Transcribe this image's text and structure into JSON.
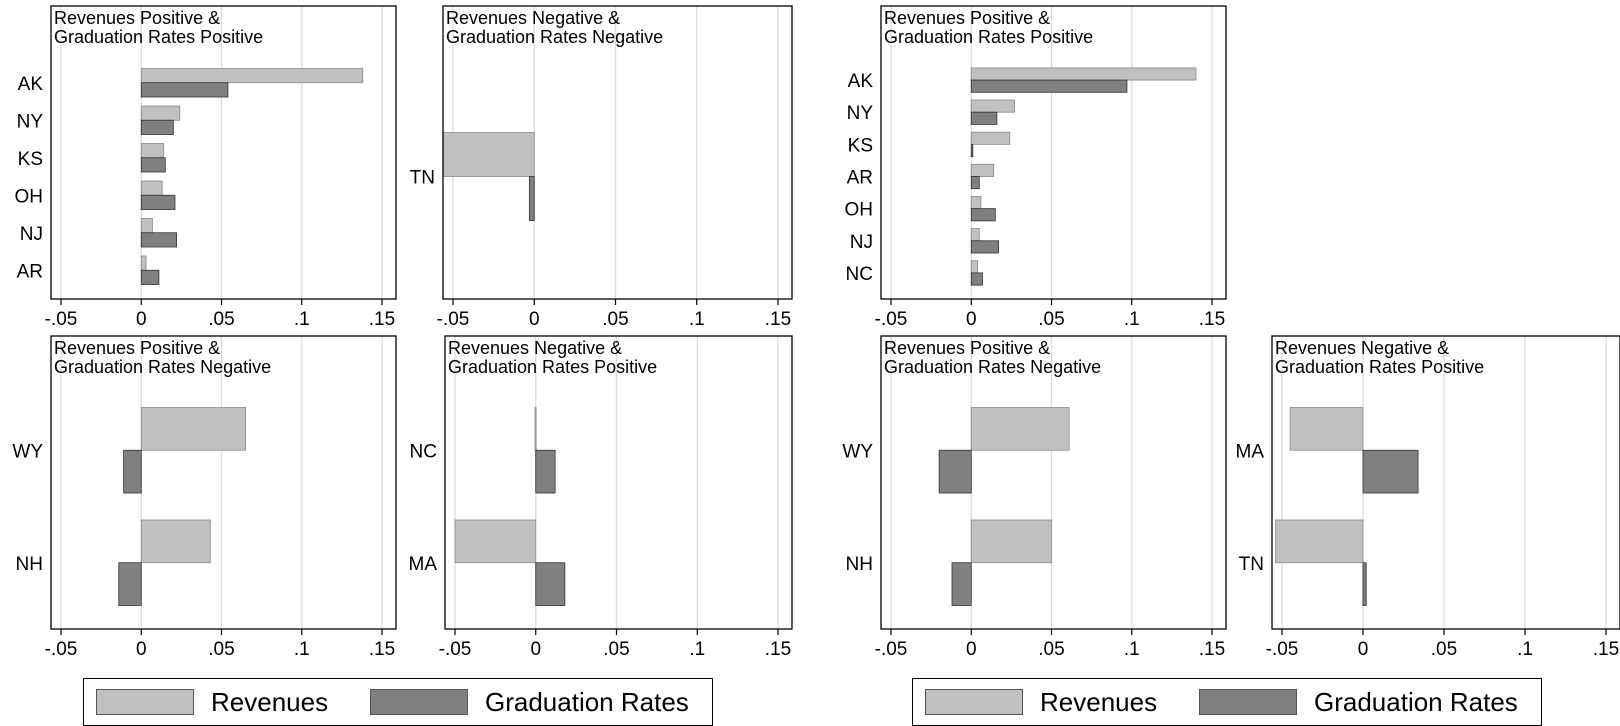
{
  "colors": {
    "revenues": "#c0c0c0",
    "graduation_rates": "#808080",
    "gridline": "#dcdcdc"
  },
  "legends": [
    {
      "items": [
        {
          "label": "Revenues",
          "series": "revenues"
        },
        {
          "label": "Graduation Rates",
          "series": "graduation_rates"
        }
      ]
    },
    {
      "items": [
        {
          "label": "Revenues",
          "series": "revenues"
        },
        {
          "label": "Graduation Rates",
          "series": "graduation_rates"
        }
      ]
    }
  ],
  "chart_data": [
    {
      "type": "bar",
      "orientation": "horizontal",
      "panel": "left-top-left",
      "title": [
        "Revenues Positive &",
        "Graduation Rates Positive"
      ],
      "categories": [
        "AK",
        "NY",
        "KS",
        "OH",
        "NJ",
        "AR"
      ],
      "series": [
        {
          "name": "Revenues",
          "values": [
            0.138,
            0.024,
            0.014,
            0.013,
            0.007,
            0.003
          ]
        },
        {
          "name": "Graduation Rates",
          "values": [
            0.054,
            0.02,
            0.015,
            0.021,
            0.022,
            0.011
          ]
        }
      ],
      "xlim": [
        -0.05,
        0.15
      ],
      "xticks": [
        -0.05,
        0,
        0.05,
        0.1,
        0.15
      ],
      "xtick_labels": [
        "-.05",
        "0",
        ".05",
        ".1",
        ".15"
      ],
      "grid": true
    },
    {
      "type": "bar",
      "orientation": "horizontal",
      "panel": "left-top-right",
      "title": [
        "Revenues Negative &",
        "Graduation Rates Negative"
      ],
      "categories": [
        "TN"
      ],
      "series": [
        {
          "name": "Revenues",
          "values": [
            -0.056
          ]
        },
        {
          "name": "Graduation Rates",
          "values": [
            -0.003
          ]
        }
      ],
      "xlim": [
        -0.05,
        0.15
      ],
      "xticks": [
        -0.05,
        0,
        0.05,
        0.1,
        0.15
      ],
      "xtick_labels": [
        "-.05",
        "0",
        ".05",
        ".1",
        ".15"
      ],
      "grid": true
    },
    {
      "type": "bar",
      "orientation": "horizontal",
      "panel": "left-bottom-left",
      "title": [
        "Revenues Positive &",
        "Graduation Rates Negative"
      ],
      "categories": [
        "WY",
        "NH"
      ],
      "series": [
        {
          "name": "Revenues",
          "values": [
            0.065,
            0.043
          ]
        },
        {
          "name": "Graduation Rates",
          "values": [
            -0.011,
            -0.014
          ]
        }
      ],
      "xlim": [
        -0.05,
        0.15
      ],
      "xticks": [
        -0.05,
        0,
        0.05,
        0.1,
        0.15
      ],
      "xtick_labels": [
        "-.05",
        "0",
        ".05",
        ".1",
        ".15"
      ],
      "grid": true
    },
    {
      "type": "bar",
      "orientation": "horizontal",
      "panel": "left-bottom-right",
      "title": [
        "Revenues Negative &",
        "Graduation Rates Positive"
      ],
      "categories": [
        "NC",
        "MA"
      ],
      "series": [
        {
          "name": "Revenues",
          "values": [
            -0.0005,
            -0.05
          ]
        },
        {
          "name": "Graduation Rates",
          "values": [
            0.012,
            0.018
          ]
        }
      ],
      "xlim": [
        -0.05,
        0.15
      ],
      "xticks": [
        -0.05,
        0,
        0.05,
        0.1,
        0.15
      ],
      "xtick_labels": [
        "-.05",
        "0",
        ".05",
        ".1",
        ".15"
      ],
      "grid": true
    },
    {
      "type": "bar",
      "orientation": "horizontal",
      "panel": "right-top-left",
      "title": [
        "Revenues Positive &",
        "Graduation Rates Positive"
      ],
      "categories": [
        "AK",
        "NY",
        "KS",
        "AR",
        "OH",
        "NJ",
        "NC"
      ],
      "series": [
        {
          "name": "Revenues",
          "values": [
            0.14,
            0.027,
            0.024,
            0.014,
            0.006,
            0.005,
            0.004
          ]
        },
        {
          "name": "Graduation Rates",
          "values": [
            0.097,
            0.016,
            0.001,
            0.005,
            0.015,
            0.017,
            0.007
          ]
        }
      ],
      "xlim": [
        -0.05,
        0.15
      ],
      "xticks": [
        -0.05,
        0,
        0.05,
        0.1,
        0.15
      ],
      "xtick_labels": [
        "-.05",
        "0",
        ".05",
        ".1",
        ".15"
      ],
      "grid": true
    },
    {
      "type": "bar",
      "orientation": "horizontal",
      "panel": "right-bottom-left",
      "title": [
        "Revenues Positive &",
        "Graduation Rates Negative"
      ],
      "categories": [
        "WY",
        "NH"
      ],
      "series": [
        {
          "name": "Revenues",
          "values": [
            0.061,
            0.05
          ]
        },
        {
          "name": "Graduation Rates",
          "values": [
            -0.02,
            -0.012
          ]
        }
      ],
      "xlim": [
        -0.05,
        0.15
      ],
      "xticks": [
        -0.05,
        0,
        0.05,
        0.1,
        0.15
      ],
      "xtick_labels": [
        "-.05",
        "0",
        ".05",
        ".1",
        ".15"
      ],
      "grid": true
    },
    {
      "type": "bar",
      "orientation": "horizontal",
      "panel": "right-bottom-right",
      "title": [
        "Revenues Negative &",
        "Graduation Rates Positive"
      ],
      "categories": [
        "MA",
        "TN"
      ],
      "series": [
        {
          "name": "Revenues",
          "values": [
            -0.045,
            -0.054
          ]
        },
        {
          "name": "Graduation Rates",
          "values": [
            0.034,
            0.002
          ]
        }
      ],
      "xlim": [
        -0.05,
        0.15
      ],
      "xticks": [
        -0.05,
        0,
        0.05,
        0.1,
        0.15
      ],
      "xtick_labels": [
        "-.05",
        "0",
        ".05",
        ".1",
        ".15"
      ],
      "grid": true
    }
  ]
}
